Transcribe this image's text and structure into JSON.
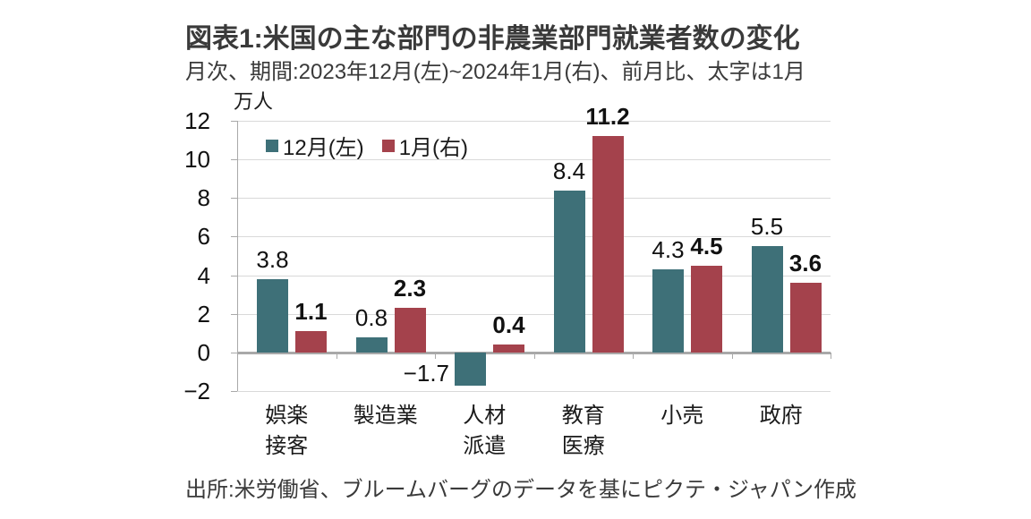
{
  "title": "図表1:米国の主な部門の非農業部門就業者数の変化",
  "subtitle": "月次、期間:2023年12月(左)~2024年1月(右)、前月比、太字は1月",
  "unit_label": "万人",
  "source": "出所:米労働省、ブルームバーグのデータを基にピクテ・ジャパン作成",
  "colors": {
    "december_bar": "#3E7078",
    "january_bar": "#A4424C",
    "gridline": "#d9d9d9",
    "axis": "#a9a9a9",
    "text": "#3a3a3a",
    "number_text": "#111111"
  },
  "chart_data": {
    "type": "bar",
    "title": "図表1:米国の主な部門の非農業部門就業者数の変化",
    "subtitle": "月次、期間:2023年12月(左)~2024年1月(右)、前月比、太字は1月",
    "ylabel": "万人",
    "categories": [
      "娯楽\n接客",
      "製造業",
      "人材\n派遣",
      "教育\n医療",
      "小売",
      "政府"
    ],
    "series": [
      {
        "key": "dec",
        "name": "12月(左)",
        "color": "#3E7078",
        "bold_labels": false,
        "values": [
          3.8,
          0.8,
          -1.7,
          8.4,
          4.3,
          5.5
        ]
      },
      {
        "key": "jan",
        "name": "1月(右)",
        "color": "#A4424C",
        "bold_labels": true,
        "values": [
          1.1,
          2.3,
          0.4,
          11.2,
          4.5,
          3.6
        ]
      }
    ],
    "ylim": [
      -2,
      12
    ],
    "yticks": [
      12,
      10,
      8,
      6,
      4,
      2,
      0,
      -2
    ],
    "grid": true,
    "legend_position": "top-left-inside",
    "source": "出所:米労働省、ブルームバーグのデータを基にピクテ・ジャパン作成"
  }
}
